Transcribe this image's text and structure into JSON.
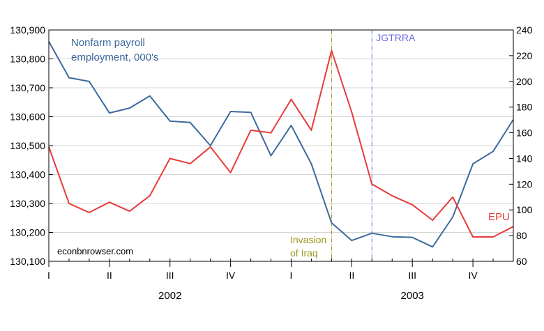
{
  "chart_data": {
    "type": "line",
    "title": "",
    "watermark": "econbnrowser.com",
    "x": [
      "2002-01",
      "2002-02",
      "2002-03",
      "2002-04",
      "2002-05",
      "2002-06",
      "2002-07",
      "2002-08",
      "2002-09",
      "2002-10",
      "2002-11",
      "2002-12",
      "2003-01",
      "2003-02",
      "2003-03",
      "2003-04",
      "2003-05",
      "2003-06",
      "2003-07",
      "2003-08",
      "2003-09",
      "2003-10",
      "2003-11",
      "2003-12"
    ],
    "quarter_ticks": [
      {
        "label": "I",
        "month": "2002-01"
      },
      {
        "label": "II",
        "month": "2002-04"
      },
      {
        "label": "III",
        "month": "2002-07"
      },
      {
        "label": "IV",
        "month": "2002-10"
      },
      {
        "label": "I",
        "month": "2003-01"
      },
      {
        "label": "II",
        "month": "2003-04"
      },
      {
        "label": "III",
        "month": "2003-07"
      },
      {
        "label": "IV",
        "month": "2003-10"
      }
    ],
    "years": [
      {
        "label": "2002",
        "month": "2002-07"
      },
      {
        "label": "2003",
        "month": "2003-07"
      }
    ],
    "left_axis": {
      "ylim": [
        130100,
        130900
      ],
      "ticks": [
        "130,100",
        "130,200",
        "130,300",
        "130,400",
        "130,500",
        "130,600",
        "130,700",
        "130,800",
        "130,900"
      ]
    },
    "right_axis": {
      "ylim": [
        60,
        240
      ],
      "ticks": [
        "60",
        "80",
        "100",
        "120",
        "140",
        "160",
        "180",
        "200",
        "220",
        "240"
      ]
    },
    "grid": true,
    "series": [
      {
        "name": "Nonfarm payroll employment, 000's",
        "label_lines": [
          "Nonfarm payroll",
          "employment, 000's"
        ],
        "axis": "left",
        "color": "#3c6a9c",
        "values": [
          130860,
          130735,
          130722,
          130613,
          130630,
          130672,
          130585,
          130580,
          130500,
          130618,
          130615,
          130465,
          130570,
          130437,
          130233,
          130172,
          130197,
          130185,
          130183,
          130150,
          130253,
          130437,
          130480,
          130590
        ]
      },
      {
        "name": "EPU",
        "label_lines": [
          "EPU"
        ],
        "axis": "right",
        "color": "#e83a3a",
        "values": [
          149,
          105,
          98,
          106,
          99,
          111,
          140,
          136,
          149,
          129,
          162,
          160,
          186,
          162,
          224,
          176,
          120,
          111,
          104,
          92,
          110,
          79,
          79,
          87
        ]
      }
    ],
    "annotations": [
      {
        "lines": [
          "Invasion",
          "of Iraq"
        ],
        "month": "2003-03",
        "color": "#9b9520",
        "style": "dash-dot"
      },
      {
        "lines": [
          "JGTRRA"
        ],
        "month": "2003-05",
        "color": "#6a6ae8",
        "style": "dash-dot"
      }
    ]
  }
}
